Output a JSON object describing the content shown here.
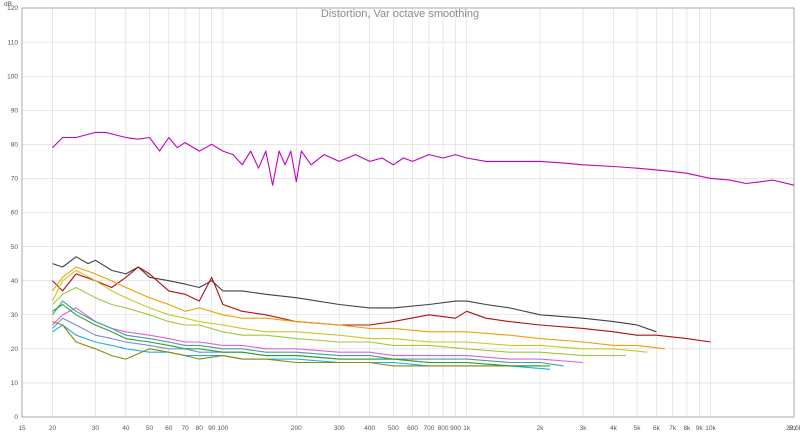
{
  "chart_data": {
    "type": "line",
    "title": "Distortion, Var octave smoothing",
    "y_unit": "dB",
    "x_unit": "Hz",
    "x_scale": "log",
    "xlim": [
      15,
      22000
    ],
    "ylim": [
      0,
      120
    ],
    "grid": true,
    "y_ticks": [
      0,
      10,
      20,
      30,
      40,
      50,
      60,
      70,
      80,
      90,
      100,
      110,
      120
    ],
    "y_tick_labels": [
      "0",
      "10",
      "20",
      "30",
      "40",
      "50",
      "60",
      "70",
      "80",
      "90",
      "100",
      "110",
      "120"
    ],
    "x_ticks": [
      15,
      20,
      30,
      40,
      50,
      60,
      70,
      80,
      90,
      100,
      200,
      300,
      400,
      500,
      600,
      700,
      800,
      900,
      1000,
      2000,
      3000,
      4000,
      5000,
      6000,
      7000,
      8000,
      9000,
      10000,
      22000
    ],
    "x_tick_labels": [
      "15",
      "20",
      "30",
      "40",
      "50",
      "60",
      "70",
      "80",
      "90",
      "100",
      "200",
      "300",
      "400",
      "500",
      "600",
      "700",
      "800",
      "900",
      "1k",
      "2k",
      "3k",
      "4k",
      "5k",
      "6k",
      "7k",
      "8k",
      "9k",
      "10k",
      "22.0k"
    ],
    "series": [
      {
        "color": "#c000c0",
        "x": [
          20,
          22,
          25,
          30,
          33,
          40,
          45,
          50,
          55,
          60,
          65,
          70,
          80,
          90,
          100,
          110,
          120,
          130,
          140,
          150,
          160,
          170,
          180,
          190,
          200,
          210,
          230,
          260,
          300,
          350,
          400,
          450,
          500,
          550,
          600,
          700,
          800,
          900,
          1000,
          1200,
          1500,
          2000,
          2500,
          3000,
          4000,
          5000,
          6000,
          7000,
          8000,
          10000,
          12000,
          14000,
          16000,
          18000,
          22000
        ],
        "y": [
          79,
          82,
          82,
          83.5,
          83.5,
          82,
          81.5,
          82,
          78,
          82,
          79,
          80.5,
          78,
          80,
          78,
          77,
          74,
          78,
          73,
          78,
          68,
          78,
          74,
          78,
          69,
          78,
          74,
          77,
          75,
          77,
          75,
          76,
          74,
          76,
          75,
          77,
          76,
          77,
          76,
          75,
          75,
          75,
          74.5,
          74,
          73.5,
          73,
          72.5,
          72,
          71.5,
          70,
          69.5,
          68.5,
          69,
          69.5,
          68
        ]
      },
      {
        "color": "#404040",
        "x": [
          20,
          22,
          25,
          28,
          30,
          35,
          40,
          45,
          50,
          60,
          70,
          80,
          90,
          100,
          120,
          150,
          200,
          300,
          400,
          500,
          700,
          900,
          1000,
          1200,
          1500,
          2000,
          3000,
          4000,
          5000,
          6000
        ],
        "y": [
          45,
          44,
          47,
          45,
          46,
          43,
          42,
          44,
          41,
          40,
          39,
          38,
          40,
          37,
          37,
          36,
          35,
          33,
          32,
          32,
          33,
          34,
          34,
          33,
          32,
          30,
          29,
          28,
          27,
          25
        ]
      },
      {
        "color": "#b01010",
        "x": [
          20,
          22,
          25,
          30,
          35,
          40,
          45,
          50,
          60,
          70,
          80,
          90,
          100,
          120,
          150,
          200,
          300,
          400,
          500,
          700,
          900,
          1000,
          1200,
          1500,
          2000,
          3000,
          4000,
          5000,
          6000,
          8000,
          10000
        ],
        "y": [
          40,
          37,
          42,
          40,
          38,
          41,
          44,
          42,
          37,
          36,
          34,
          41,
          33,
          31,
          30,
          28,
          27,
          27,
          28,
          30,
          29,
          31,
          29,
          28,
          27,
          26,
          25,
          24,
          24,
          23,
          22
        ]
      },
      {
        "color": "#f0a000",
        "x": [
          20,
          22,
          25,
          30,
          35,
          40,
          50,
          60,
          70,
          80,
          100,
          120,
          150,
          200,
          300,
          400,
          500,
          700,
          1000,
          1500,
          2000,
          3000,
          4000,
          5000,
          6500
        ],
        "y": [
          37,
          41,
          44,
          42,
          40,
          38,
          35,
          33,
          31,
          32,
          30,
          29,
          29,
          28,
          27,
          26,
          26,
          25,
          25,
          24,
          23,
          22,
          21,
          21,
          20
        ]
      },
      {
        "color": "#c8c820",
        "x": [
          20,
          22,
          25,
          30,
          35,
          40,
          50,
          60,
          70,
          80,
          100,
          120,
          150,
          200,
          300,
          400,
          500,
          700,
          1000,
          1500,
          2000,
          3000,
          4000,
          5500
        ],
        "y": [
          34,
          40,
          43,
          40,
          37,
          35,
          32,
          30,
          29,
          28,
          27,
          26,
          25,
          25,
          24,
          23,
          23,
          22,
          22,
          21,
          21,
          20,
          20,
          19
        ]
      },
      {
        "color": "#a0c840",
        "x": [
          20,
          22,
          25,
          30,
          35,
          40,
          50,
          60,
          70,
          80,
          100,
          120,
          150,
          200,
          300,
          400,
          500,
          700,
          1000,
          1500,
          2000,
          3000,
          4500
        ],
        "y": [
          33,
          36,
          38,
          35,
          33,
          32,
          30,
          28,
          27,
          27,
          25,
          24,
          24,
          23,
          22,
          22,
          21,
          21,
          20,
          19,
          19,
          18,
          18
        ]
      },
      {
        "color": "#e060e0",
        "x": [
          20,
          22,
          25,
          30,
          35,
          40,
          50,
          60,
          70,
          80,
          100,
          120,
          150,
          200,
          300,
          400,
          500,
          700,
          1000,
          1500,
          2000,
          3000
        ],
        "y": [
          27,
          30,
          32,
          28,
          26,
          25,
          24,
          23,
          22,
          22,
          21,
          21,
          20,
          20,
          19,
          19,
          18,
          18,
          18,
          17,
          17,
          16
        ]
      },
      {
        "color": "#40a0a0",
        "x": [
          20,
          22,
          25,
          30,
          35,
          40,
          50,
          60,
          70,
          80,
          100,
          120,
          150,
          200,
          300,
          400,
          500,
          700,
          1000,
          1500,
          2000,
          2500
        ],
        "y": [
          30,
          34,
          31,
          28,
          26,
          24,
          23,
          22,
          21,
          21,
          20,
          20,
          19,
          19,
          18,
          18,
          17,
          17,
          17,
          16,
          16,
          15
        ]
      },
      {
        "color": "#7090e0",
        "x": [
          20,
          22,
          25,
          30,
          35,
          40,
          50,
          60,
          70,
          80,
          100,
          120,
          150,
          200,
          300,
          400,
          500,
          700,
          1000,
          1500,
          2000
        ],
        "y": [
          26,
          29,
          27,
          24,
          23,
          22,
          21,
          20,
          20,
          19,
          19,
          19,
          18,
          18,
          17,
          17,
          17,
          16,
          16,
          15,
          15
        ]
      },
      {
        "color": "#20b0e0",
        "x": [
          20,
          22,
          25,
          30,
          35,
          40,
          50,
          60,
          70,
          80,
          100,
          120,
          150,
          200,
          300,
          400,
          500,
          700,
          1000,
          1500,
          2200
        ],
        "y": [
          25,
          27,
          24,
          22,
          21,
          20,
          19,
          19,
          18,
          18,
          18,
          17,
          17,
          17,
          16,
          16,
          16,
          15,
          15,
          15,
          14
        ]
      },
      {
        "color": "#8a8a10",
        "x": [
          20,
          22,
          25,
          30,
          35,
          40,
          50,
          60,
          70,
          80,
          100,
          120,
          150,
          200,
          300,
          400,
          500,
          700,
          1000,
          1500,
          2000
        ],
        "y": [
          28,
          27,
          22,
          20,
          18,
          17,
          20,
          19,
          18,
          17,
          18,
          17,
          17,
          16,
          16,
          16,
          15,
          15,
          15,
          15,
          15
        ]
      },
      {
        "color": "#30a030",
        "x": [
          20,
          22,
          25,
          30,
          35,
          40,
          50,
          60,
          70,
          80,
          100,
          120,
          150,
          200,
          300,
          400,
          500,
          700,
          1000,
          1500,
          2200
        ],
        "y": [
          31,
          33,
          30,
          27,
          25,
          23,
          22,
          21,
          20,
          20,
          19,
          19,
          18,
          18,
          17,
          17,
          17,
          16,
          16,
          15,
          15
        ]
      }
    ]
  }
}
